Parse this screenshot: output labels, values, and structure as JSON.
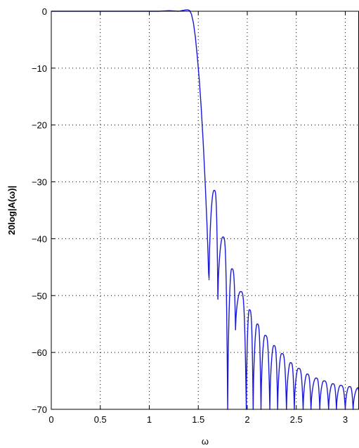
{
  "chart_data": {
    "type": "line",
    "title": "",
    "xlabel": "ω",
    "ylabel": "20log|A(ω)|",
    "xlim": [
      0,
      3.14
    ],
    "ylim": [
      -70,
      0
    ],
    "xticks": [
      0,
      0.5,
      1,
      1.5,
      2,
      2.5,
      3
    ],
    "xtick_labels": [
      "0",
      "0.5",
      "1",
      "1.5",
      "2",
      "2.5",
      "3"
    ],
    "yticks": [
      0,
      -10,
      -20,
      -30,
      -40,
      -50,
      -60,
      -70
    ],
    "ytick_labels": [
      "0",
      "−10",
      "−20",
      "−30",
      "−40",
      "−50",
      "−60",
      "−70"
    ],
    "grid": true,
    "legend": "none",
    "colors": {
      "line": "#1a1ad6",
      "axes": "#000000",
      "grid": "#000000",
      "background": "#ffffff"
    },
    "passband": {
      "x": [
        0,
        0.2,
        0.4,
        0.6,
        0.8,
        1.0,
        1.1,
        1.15,
        1.2,
        1.25,
        1.3,
        1.33,
        1.36,
        1.39,
        1.41,
        1.43,
        1.45,
        1.47,
        1.49,
        1.51,
        1.53,
        1.55,
        1.57,
        1.59,
        1.6,
        1.605,
        1.61
      ],
      "y": [
        0,
        0,
        0,
        0,
        0,
        0,
        0,
        0.05,
        0.1,
        0.05,
        0,
        0.1,
        0.2,
        0.25,
        0.15,
        -0.5,
        -2,
        -4.5,
        -8,
        -12,
        -17,
        -23,
        -30,
        -38,
        -43,
        -46,
        -47
      ]
    },
    "sidelobe_peaks": [
      {
        "x": 1.66,
        "y": -31.5
      },
      {
        "x": 1.75,
        "y": -39.7
      },
      {
        "x": 1.84,
        "y": -45.3
      },
      {
        "x": 1.93,
        "y": -49.3
      },
      {
        "x": 2.02,
        "y": -52.5
      },
      {
        "x": 2.1,
        "y": -55
      },
      {
        "x": 2.18,
        "y": -57
      },
      {
        "x": 2.27,
        "y": -58.8
      },
      {
        "x": 2.35,
        "y": -60.2
      },
      {
        "x": 2.44,
        "y": -61.8
      },
      {
        "x": 2.52,
        "y": -62.8
      },
      {
        "x": 2.61,
        "y": -63.8
      },
      {
        "x": 2.7,
        "y": -64.5
      },
      {
        "x": 2.78,
        "y": -65
      },
      {
        "x": 2.87,
        "y": -65.5
      },
      {
        "x": 2.95,
        "y": -65.8
      },
      {
        "x": 3.04,
        "y": -66
      },
      {
        "x": 3.13,
        "y": -66.2
      }
    ],
    "nulls": [
      {
        "x": 1.61,
        "y": -47.2
      },
      {
        "x": 1.7,
        "y": -50.6
      },
      {
        "x": 1.8,
        "y": -70
      },
      {
        "x": 1.88,
        "y": -56
      },
      {
        "x": 1.99,
        "y": -70
      },
      {
        "x": 2.06,
        "y": -70
      },
      {
        "x": 2.14,
        "y": -70
      },
      {
        "x": 2.23,
        "y": -70
      },
      {
        "x": 2.31,
        "y": -70
      },
      {
        "x": 2.4,
        "y": -70
      },
      {
        "x": 2.48,
        "y": -70
      },
      {
        "x": 2.57,
        "y": -70
      },
      {
        "x": 2.65,
        "y": -70
      },
      {
        "x": 2.74,
        "y": -70
      },
      {
        "x": 2.83,
        "y": -70
      },
      {
        "x": 2.91,
        "y": -70
      },
      {
        "x": 3.0,
        "y": -70
      },
      {
        "x": 3.08,
        "y": -70
      }
    ]
  }
}
